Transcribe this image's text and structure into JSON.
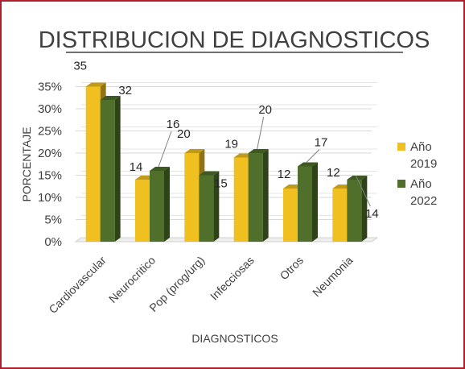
{
  "chart_data": {
    "type": "bar",
    "title": "DISTRIBUCION DE DIAGNOSTICOS",
    "xlabel": "DIAGNOSTICOS",
    "ylabel": "PORCENTAJE",
    "ylim": [
      0,
      35
    ],
    "yticks": [
      "0%",
      "5%",
      "10%",
      "15%",
      "20%",
      "25%",
      "30%",
      "35%"
    ],
    "grid": true,
    "legend_position": "right",
    "categories": [
      "Cardiovascular",
      "Neurocritico",
      "Pop (prog/urg)",
      "Infecciosas",
      "Otros",
      "Neumonia"
    ],
    "series": [
      {
        "name": "Año 2019",
        "legend_lines": [
          "Año",
          "2019"
        ],
        "color": "#f0c020",
        "values": [
          35,
          14,
          20,
          19,
          12,
          12
        ]
      },
      {
        "name": "Año 2022",
        "legend_lines": [
          "Año",
          "2022"
        ],
        "color": "#4f6f2a",
        "values": [
          32,
          16,
          15,
          20,
          17,
          14
        ]
      }
    ]
  }
}
